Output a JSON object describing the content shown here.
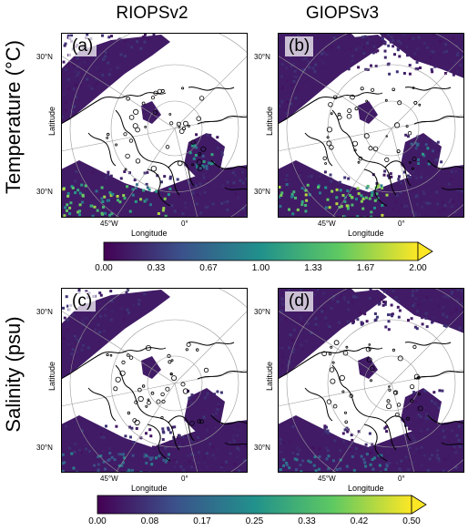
{
  "columns": [
    "RIOPSv2",
    "GIOPSv3"
  ],
  "rows": [
    {
      "title": "Temperature (°C)"
    },
    {
      "title": "Salinity (psu)"
    }
  ],
  "panels": [
    {
      "label": "(a)",
      "model": "RIOPSv2",
      "variable": "Temperature"
    },
    {
      "label": "(b)",
      "model": "GIOPSv3",
      "variable": "Temperature"
    },
    {
      "label": "(c)",
      "model": "RIOPSv2",
      "variable": "Salinity"
    },
    {
      "label": "(d)",
      "model": "GIOPSv3",
      "variable": "Salinity"
    }
  ],
  "axes": {
    "xlabel": "Longitude",
    "ylabel": "Latitude",
    "lat_tick_top": "30°N",
    "lat_tick_bottom": "30°N",
    "lon_tick_left": "45°W",
    "lon_tick_right": "0°"
  },
  "colorbars": [
    {
      "variable": "Temperature",
      "min": 0.0,
      "max": 2.0,
      "extend": "max",
      "ticks": [
        "0.00",
        "0.33",
        "0.67",
        "1.00",
        "1.33",
        "1.67",
        "2.00"
      ]
    },
    {
      "variable": "Salinity",
      "min": 0.0,
      "max": 0.5,
      "extend": "max",
      "ticks": [
        "0.00",
        "0.08",
        "0.17",
        "0.25",
        "0.33",
        "0.42",
        "0.50"
      ]
    }
  ],
  "chart_data": {
    "type": "heatmap",
    "colormap": "viridis",
    "colormap_stops": [
      "#440154",
      "#3b528b",
      "#21918c",
      "#5ec962",
      "#fde725"
    ],
    "land_color": "#ffffff",
    "coastline_color": "#000000",
    "graticule_color": "#9a9a9a"
  }
}
